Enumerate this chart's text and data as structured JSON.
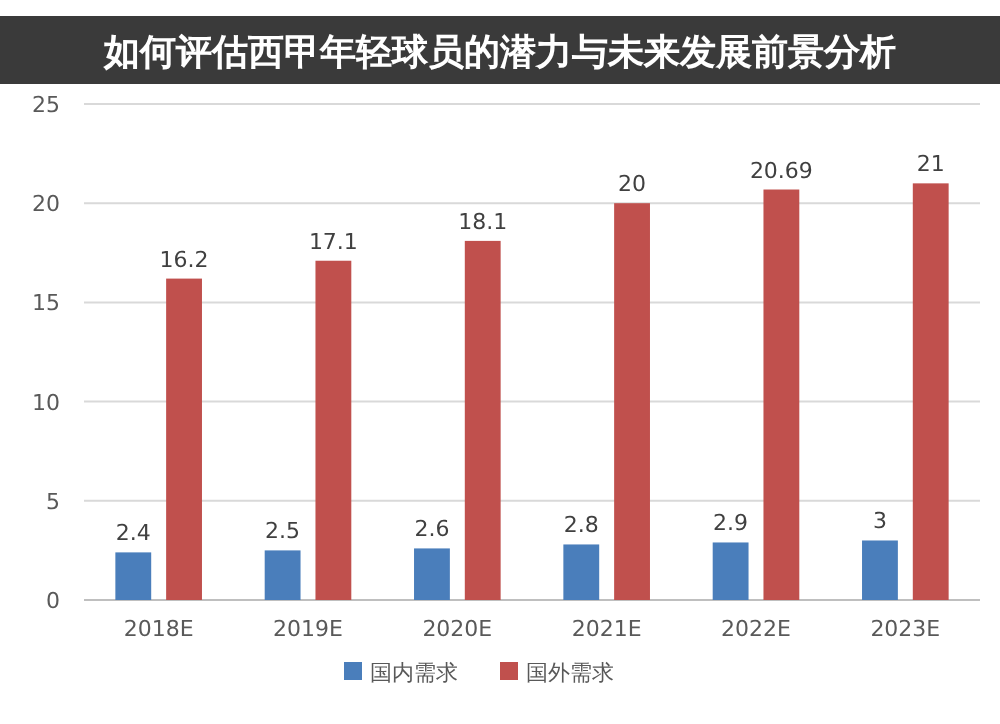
{
  "chart_data": {
    "type": "bar",
    "title": "如何评估西甲年轻球员的潜力与未来发展前景分析",
    "categories": [
      "2018E",
      "2019E",
      "2020E",
      "2021E",
      "2022E",
      "2023E"
    ],
    "series": [
      {
        "name": "国内需求",
        "color": "#4a7ebb",
        "values": [
          2.4,
          2.5,
          2.6,
          2.8,
          2.9,
          3
        ]
      },
      {
        "name": "国外需求",
        "color": "#c0504d",
        "values": [
          16.2,
          17.1,
          18.1,
          20,
          20.69,
          21
        ]
      }
    ],
    "ylim": [
      0,
      25
    ],
    "yticks": [
      0,
      5,
      10,
      15,
      20,
      25
    ],
    "grid": "y",
    "legend": "bottom",
    "data_labels": true
  }
}
